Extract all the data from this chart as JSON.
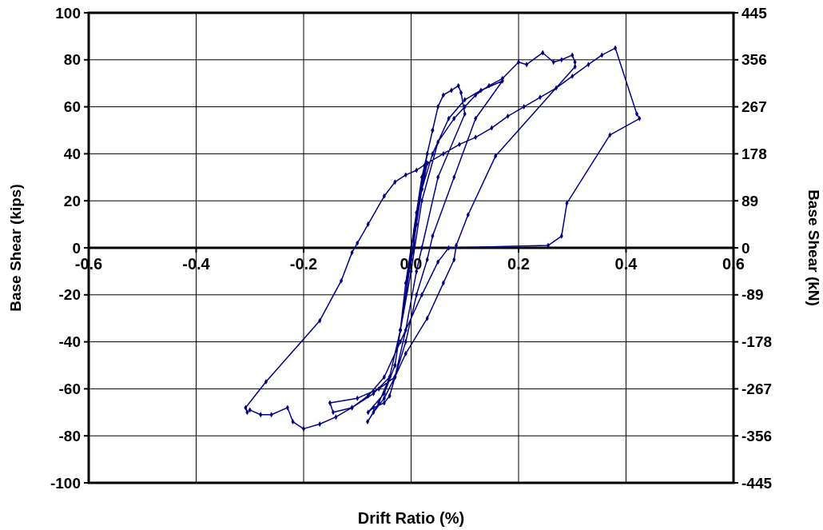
{
  "chart_data": {
    "type": "line",
    "xlabel": "Drift Ratio (%)",
    "ylabel": "Base Shear (kips)",
    "y2label": "Base Shear (kN)",
    "xlim": [
      -0.6,
      0.6
    ],
    "xticks": [
      -0.6,
      -0.4,
      -0.2,
      {
        "value": 0,
        "label": "0.0"
      },
      0.2,
      0.4,
      0.6
    ],
    "ylim": [
      -100,
      100
    ],
    "yticks": [
      -100,
      -80,
      -60,
      -40,
      -20,
      0,
      20,
      40,
      60,
      80,
      100
    ],
    "y2lim": [
      -445,
      445
    ],
    "y2ticks": [
      -445,
      -356,
      -267,
      -178,
      -89,
      0,
      89,
      178,
      267,
      356,
      445
    ],
    "grid": true,
    "marker": "diamond",
    "line_style": "solid",
    "series": [
      {
        "color": "#000080",
        "x": [
          0,
          0.01,
          0.02,
          0.03,
          0.04,
          0.02,
          0,
          -0.01,
          -0.02,
          -0.03,
          -0.02,
          0,
          0.005,
          0.01,
          0.025,
          0.04,
          0.05,
          0.06,
          0.075,
          0.088,
          0.093,
          0.1,
          0.05,
          0.02,
          0.01,
          -0.01,
          -0.03,
          -0.04,
          -0.05,
          -0.07,
          -0.08,
          -0.05,
          -0.03,
          -0.01,
          0,
          0.02,
          0.04,
          0.07,
          0.1,
          0.13,
          0.17,
          0.12,
          0.08,
          0.04,
          0.03,
          0.01,
          -0.01,
          -0.03,
          -0.05,
          -0.07,
          -0.081,
          -0.06,
          -0.04,
          -0.02,
          0,
          0.02,
          0.05,
          0.08,
          0.1,
          0.12,
          0.145,
          0.17,
          0.2,
          0.215,
          0.245,
          0.265,
          0.28,
          0.3,
          0.305,
          0.305,
          0.157,
          0.106,
          0.084,
          0.08,
          0.06,
          0.03,
          -0.01,
          -0.03,
          -0.06,
          -0.1,
          -0.151,
          -0.145,
          -0.11,
          -0.07,
          -0.04,
          -0.02,
          0,
          0.02,
          0.03,
          0.06,
          0.09,
          0.12,
          0.15,
          0.18,
          0.21,
          0.24,
          0.27,
          0.3,
          0.33,
          0.355,
          0.38,
          0.42,
          0.425,
          0.37,
          0.29,
          0.28,
          0.255,
          0.07,
          0.05,
          0.02,
          -0.02,
          -0.05,
          -0.08,
          -0.11,
          -0.14,
          -0.17,
          -0.2,
          -0.22,
          -0.23,
          -0.26,
          -0.28,
          -0.3,
          -0.305,
          -0.308,
          -0.27,
          -0.17,
          -0.13,
          -0.11,
          -0.1,
          -0.08,
          -0.05,
          -0.03,
          -0.01,
          0.01,
          0.03
        ],
        "values": [
          0,
          10,
          25,
          40,
          50,
          30,
          0,
          -15,
          -35,
          -50,
          -35,
          -5,
          0,
          15,
          35,
          50,
          60,
          65,
          67,
          69,
          66,
          57,
          30,
          0,
          -10,
          -35,
          -55,
          -63,
          -66,
          -68,
          -70,
          -62,
          -50,
          -20,
          0,
          25,
          40,
          55,
          63,
          67,
          71,
          55,
          30,
          5,
          -5,
          -20,
          -40,
          -55,
          -64,
          -70,
          -74,
          -66,
          -55,
          -35,
          -10,
          20,
          45,
          55,
          60,
          65,
          69,
          72,
          79,
          78,
          83,
          79,
          80,
          82,
          79,
          77,
          39,
          14,
          1,
          -5,
          -15,
          -30,
          -45,
          -55,
          -60,
          -64,
          -66,
          -70,
          -68,
          -62,
          -55,
          -35,
          -5,
          25,
          36,
          40,
          44,
          47,
          51,
          56,
          60,
          64,
          68,
          73,
          78,
          82,
          85,
          57,
          55,
          48,
          19,
          5,
          1,
          0,
          -6,
          -20,
          -40,
          -55,
          -63,
          -68,
          -72,
          -75,
          -77,
          -74,
          -68,
          -71,
          -71,
          -69,
          -70,
          -68,
          -57,
          -31,
          -14,
          -2,
          2,
          10,
          22,
          28,
          31,
          33,
          36
        ]
      }
    ]
  }
}
